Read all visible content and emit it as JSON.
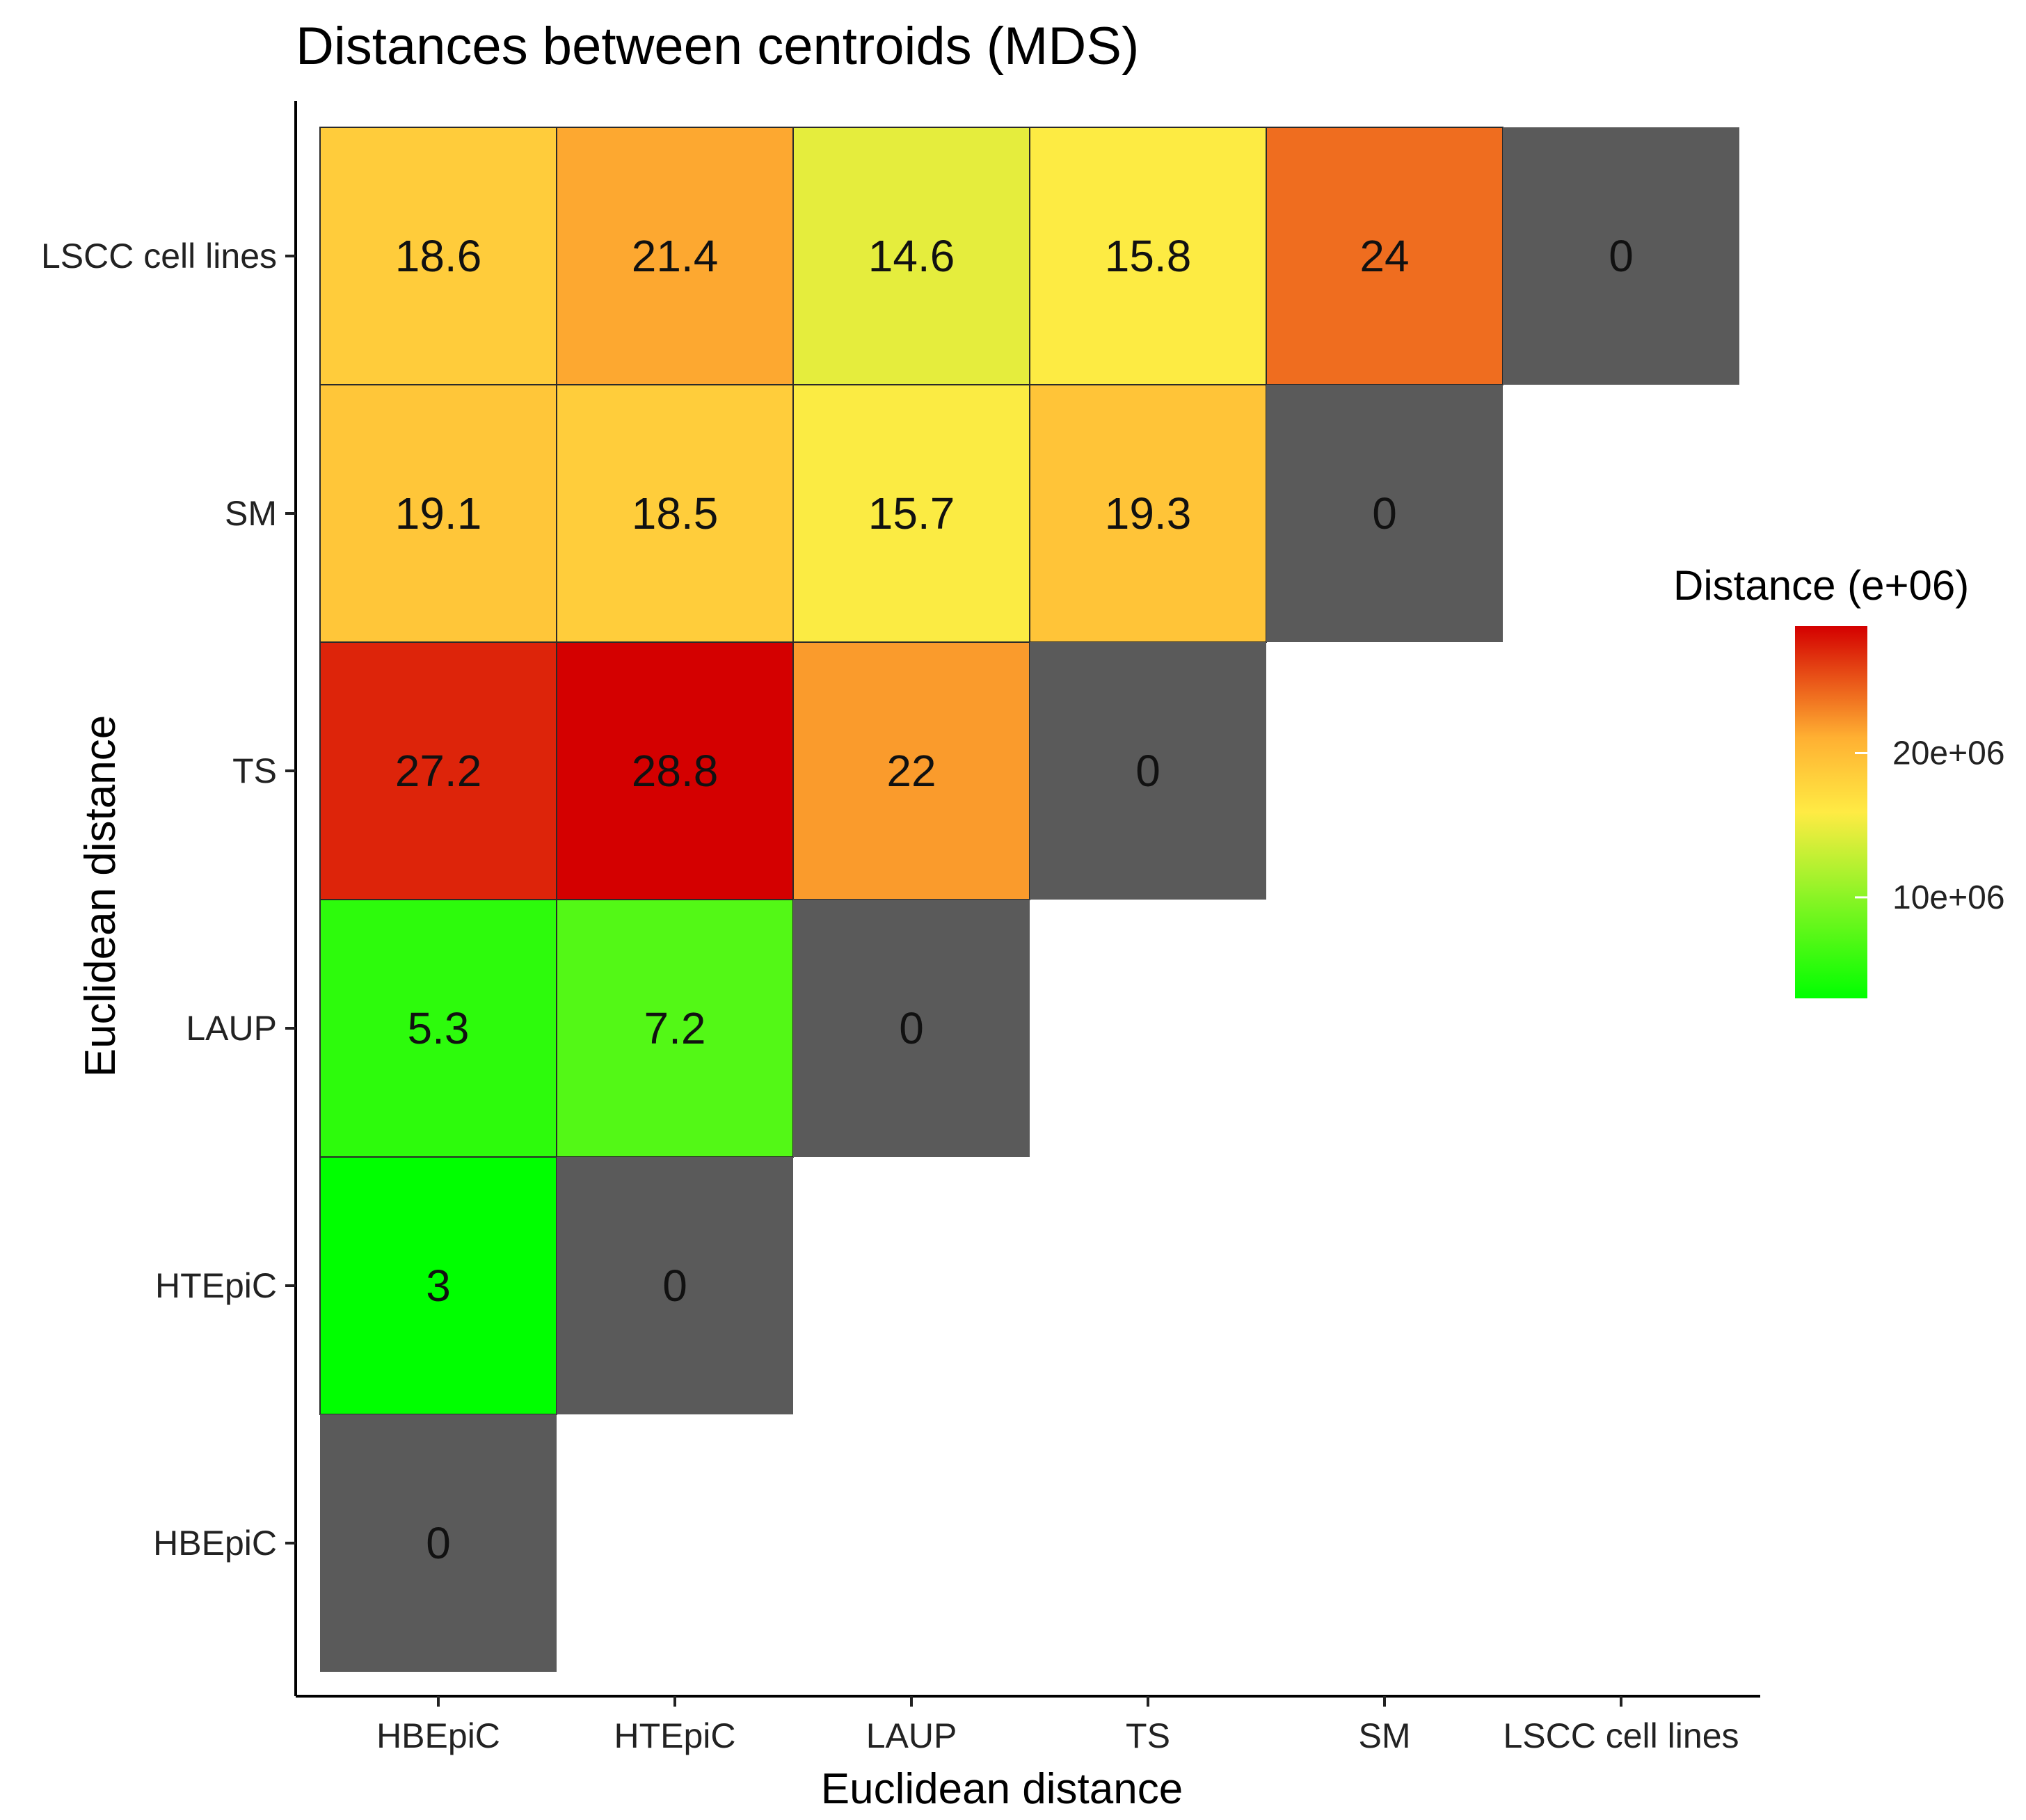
{
  "chart_data": {
    "type": "heatmap",
    "title": "Distances between centroids (MDS)",
    "xlabel": "Euclidean  distance",
    "ylabel": "Euclidean  distance",
    "categories": [
      "HBEpiC",
      "HTEpiC",
      "LAUP",
      "TS",
      "SM",
      "LSCC cell lines"
    ],
    "cells": [
      {
        "row": "LSCC cell lines",
        "col": "HBEpiC",
        "value": 18.6,
        "label": "18.6"
      },
      {
        "row": "LSCC cell lines",
        "col": "HTEpiC",
        "value": 21.4,
        "label": "21.4"
      },
      {
        "row": "LSCC cell lines",
        "col": "LAUP",
        "value": 14.6,
        "label": "14.6"
      },
      {
        "row": "LSCC cell lines",
        "col": "TS",
        "value": 15.8,
        "label": "15.8"
      },
      {
        "row": "LSCC cell lines",
        "col": "SM",
        "value": 24,
        "label": "24"
      },
      {
        "row": "LSCC cell lines",
        "col": "LSCC cell lines",
        "value": 0,
        "label": "0"
      },
      {
        "row": "SM",
        "col": "HBEpiC",
        "value": 19.1,
        "label": "19.1"
      },
      {
        "row": "SM",
        "col": "HTEpiC",
        "value": 18.5,
        "label": "18.5"
      },
      {
        "row": "SM",
        "col": "LAUP",
        "value": 15.7,
        "label": "15.7"
      },
      {
        "row": "SM",
        "col": "TS",
        "value": 19.3,
        "label": "19.3"
      },
      {
        "row": "SM",
        "col": "SM",
        "value": 0,
        "label": "0"
      },
      {
        "row": "TS",
        "col": "HBEpiC",
        "value": 27.2,
        "label": "27.2"
      },
      {
        "row": "TS",
        "col": "HTEpiC",
        "value": 28.8,
        "label": "28.8"
      },
      {
        "row": "TS",
        "col": "LAUP",
        "value": 22,
        "label": "22"
      },
      {
        "row": "TS",
        "col": "TS",
        "value": 0,
        "label": "0"
      },
      {
        "row": "LAUP",
        "col": "HBEpiC",
        "value": 5.3,
        "label": "5.3"
      },
      {
        "row": "LAUP",
        "col": "HTEpiC",
        "value": 7.2,
        "label": "7.2"
      },
      {
        "row": "LAUP",
        "col": "LAUP",
        "value": 0,
        "label": "0"
      },
      {
        "row": "HTEpiC",
        "col": "HBEpiC",
        "value": 3,
        "label": "3"
      },
      {
        "row": "HTEpiC",
        "col": "HTEpiC",
        "value": 0,
        "label": "0"
      },
      {
        "row": "HBEpiC",
        "col": "HBEpiC",
        "value": 0,
        "label": "0"
      }
    ],
    "legend": {
      "title": "Distance (e+06)",
      "ticks": [
        {
          "value": 20,
          "label": "20e+06"
        },
        {
          "value": 10,
          "label": "10e+06"
        }
      ],
      "range": [
        3,
        28.8
      ],
      "placement": "right"
    },
    "colors": {
      "low": "#00ff00",
      "mid": "#ffeb44",
      "high": "#d40000",
      "zero": "#5a5a5a"
    }
  }
}
